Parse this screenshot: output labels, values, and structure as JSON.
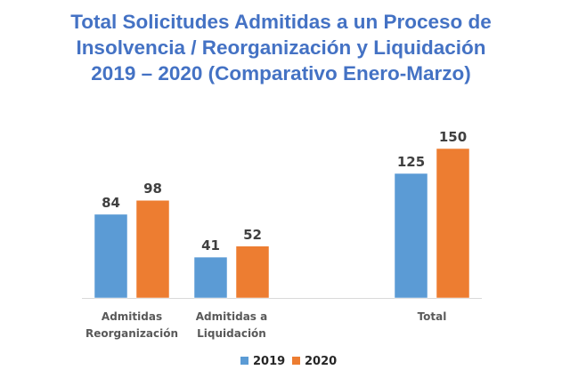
{
  "chart_data": {
    "type": "bar",
    "title_lines": [
      "Total Solicitudes Admitidas a un Proceso de",
      "Insolvencia / Reorganización y Liquidación",
      "2019 – 2020 (Comparativo Enero-Marzo)"
    ],
    "categories": [
      [
        "Admitidas",
        "Reorganización"
      ],
      [
        "Admitidas a",
        "Liquidación"
      ],
      [
        "Total"
      ]
    ],
    "series": [
      {
        "name": "2019",
        "color": "#5B9BD5",
        "values": [
          84,
          41,
          125
        ]
      },
      {
        "name": "2020",
        "color": "#ED7D31",
        "values": [
          98,
          52,
          150
        ]
      }
    ],
    "xlabel": "",
    "ylabel": "",
    "ylim": [
      0,
      150
    ],
    "grid": false,
    "legend": "bottom",
    "data_labels": true
  }
}
